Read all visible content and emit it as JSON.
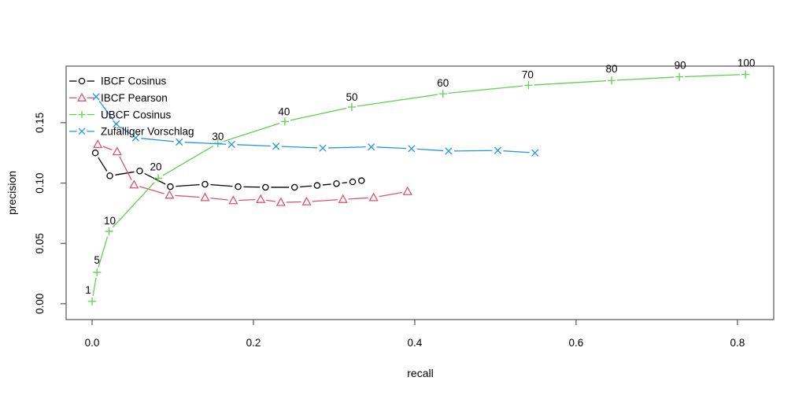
{
  "chart_data": {
    "type": "line",
    "title": "",
    "xlabel": "recall",
    "ylabel": "precision",
    "xlim": [
      -0.0322,
      0.845
    ],
    "ylim": [
      -0.0131,
      0.1969
    ],
    "x_ticks": [
      0.0,
      0.2,
      0.4,
      0.6,
      0.8
    ],
    "x_tick_labels": [
      "0.0",
      "0.2",
      "0.4",
      "0.6",
      "0.8"
    ],
    "y_ticks": [
      0.0,
      0.05,
      0.1,
      0.15
    ],
    "y_tick_labels": [
      "0.00",
      "0.05",
      "0.10",
      "0.15"
    ],
    "grid": false,
    "legend_position": "top-left-inside",
    "axis_color": "#555555",
    "text_color": "#000000",
    "top_n_values": [
      1,
      5,
      10,
      20,
      30,
      40,
      50,
      60,
      70,
      80,
      90,
      100
    ],
    "point_labels_series": "UBCF Cosinus",
    "point_labels": [
      "1",
      "5",
      "10",
      "20",
      "30",
      "40",
      "50",
      "60",
      "70",
      "80",
      "90",
      "100"
    ],
    "series": [
      {
        "name": "IBCF Cosinus",
        "color": "#000000",
        "marker": "circle",
        "points": [
          [
            0.004,
            0.125
          ],
          [
            0.022,
            0.106
          ],
          [
            0.059,
            0.11
          ],
          [
            0.097,
            0.097
          ],
          [
            0.14,
            0.099
          ],
          [
            0.181,
            0.097
          ],
          [
            0.215,
            0.0965
          ],
          [
            0.251,
            0.0965
          ],
          [
            0.279,
            0.098
          ],
          [
            0.303,
            0.0995
          ],
          [
            0.323,
            0.101
          ],
          [
            0.334,
            0.102
          ]
        ]
      },
      {
        "name": "IBCF Pearson",
        "color": "#DF536B",
        "marker": "triangle",
        "points": [
          [
            0.007,
            0.132
          ],
          [
            0.031,
            0.126
          ],
          [
            0.052,
            0.0985
          ],
          [
            0.096,
            0.09
          ],
          [
            0.14,
            0.088
          ],
          [
            0.175,
            0.0855
          ],
          [
            0.209,
            0.0865
          ],
          [
            0.234,
            0.084
          ],
          [
            0.266,
            0.0845
          ],
          [
            0.311,
            0.0865
          ],
          [
            0.349,
            0.088
          ],
          [
            0.391,
            0.093
          ]
        ]
      },
      {
        "name": "UBCF Cosinus",
        "color": "#61D04F",
        "marker": "plus",
        "points": [
          [
            0.0,
            0.002
          ],
          [
            0.006,
            0.026
          ],
          [
            0.021,
            0.06
          ],
          [
            0.082,
            0.104
          ],
          [
            0.156,
            0.133
          ],
          [
            0.239,
            0.151
          ],
          [
            0.322,
            0.163
          ],
          [
            0.435,
            0.174
          ],
          [
            0.541,
            0.181
          ],
          [
            0.644,
            0.185
          ],
          [
            0.728,
            0.188
          ],
          [
            0.81,
            0.19
          ]
        ]
      },
      {
        "name": "Zufälliger Vorschlag",
        "color": "#2297E6",
        "marker": "x",
        "points": [
          [
            0.005,
            0.1715
          ],
          [
            0.03,
            0.149
          ],
          [
            0.054,
            0.1375
          ],
          [
            0.108,
            0.134
          ],
          [
            0.173,
            0.132
          ],
          [
            0.228,
            0.1305
          ],
          [
            0.286,
            0.129
          ],
          [
            0.346,
            0.13
          ],
          [
            0.396,
            0.1285
          ],
          [
            0.442,
            0.1265
          ],
          [
            0.503,
            0.127
          ],
          [
            0.549,
            0.125
          ]
        ]
      }
    ]
  }
}
